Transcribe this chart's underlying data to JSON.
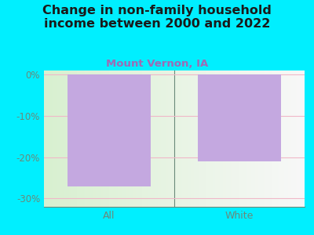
{
  "title": "Change in non-family household\nincome between 2000 and 2022",
  "subtitle": "Mount Vernon, IA",
  "categories": [
    "All",
    "White"
  ],
  "values": [
    -27.0,
    -21.0
  ],
  "bar_color": "#c4a8e0",
  "background_color": "#00efff",
  "plot_bg_left": "#dff5de",
  "plot_bg_right": "#f5f5f5",
  "title_color": "#1a1a1a",
  "subtitle_color": "#9e6bb5",
  "tick_color": "#6a8a7a",
  "grid_color": "#f0b8c8",
  "ylim": [
    -32,
    1
  ],
  "yticks": [
    0,
    -10,
    -20,
    -30
  ],
  "ytick_labels": [
    "0%",
    "-10%",
    "-20%",
    "-30%"
  ],
  "title_fontsize": 11.5,
  "subtitle_fontsize": 9.5,
  "bar_width": 0.32
}
